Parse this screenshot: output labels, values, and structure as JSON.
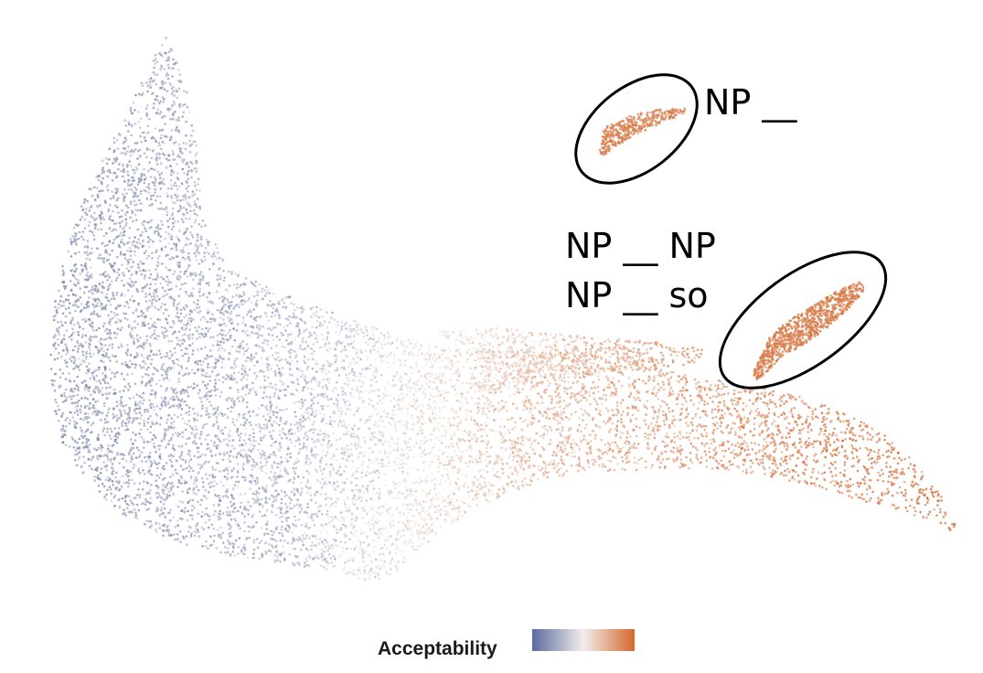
{
  "chart_data": {
    "type": "scatter",
    "description_kind": "2D embedding scatter (UMAP-style), points colored by a continuous value",
    "color_variable": "Acceptability",
    "color_scale": {
      "low": "#5b6a9e",
      "mid": "#f2eeee",
      "high": "#d3672b"
    },
    "point_count_approx": 20000,
    "annotations": [
      {
        "id": "cluster-top",
        "label": "NP __",
        "lines": [
          "NP __"
        ],
        "mean_color": "high"
      },
      {
        "id": "cluster-mid",
        "label": "NP __ NP / NP __ so",
        "lines": [
          "NP __ NP",
          "NP __ so"
        ],
        "mean_color": "high"
      }
    ],
    "legend": {
      "title": "Acceptability",
      "placement": "bottom-center",
      "kind": "continuous colorbar"
    },
    "axes": {
      "visible": false
    },
    "grid": false
  },
  "annotation_top_line1": "NP __",
  "annotation_mid_line1": "NP __ NP",
  "annotation_mid_line2": "NP __ so",
  "legend_title": "Acceptability"
}
